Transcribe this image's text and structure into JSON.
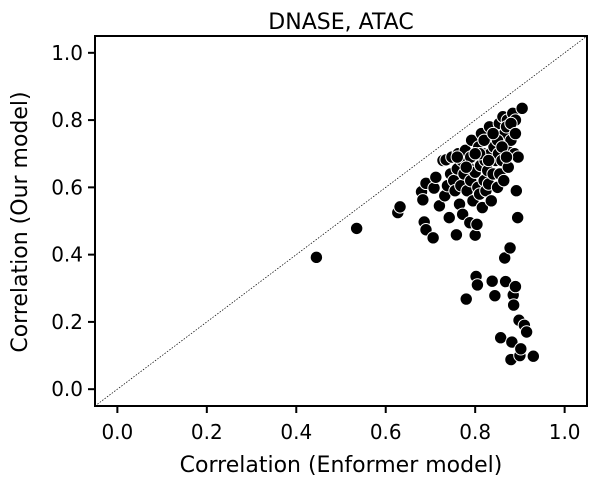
{
  "chart_data": {
    "type": "scatter",
    "title": "DNASE, ATAC",
    "xlabel": "Correlation (Enformer model)",
    "ylabel": "Correlation (Our model)",
    "xlim": [
      -0.05,
      1.05
    ],
    "ylim": [
      -0.05,
      1.05
    ],
    "xticks": [
      "0.0",
      "0.2",
      "0.4",
      "0.6",
      "0.8",
      "1.0"
    ],
    "yticks": [
      "0.0",
      "0.2",
      "0.4",
      "0.6",
      "0.8",
      "1.0"
    ],
    "grid": false,
    "reference_line": "y = x (dotted)",
    "marker_color": "#000000",
    "marker_edge_color": "#ffffff",
    "points": [
      [
        0.445,
        0.392
      ],
      [
        0.535,
        0.478
      ],
      [
        0.627,
        0.525
      ],
      [
        0.632,
        0.542
      ],
      [
        0.68,
        0.587
      ],
      [
        0.683,
        0.563
      ],
      [
        0.69,
        0.612
      ],
      [
        0.686,
        0.497
      ],
      [
        0.69,
        0.474
      ],
      [
        0.706,
        0.45
      ],
      [
        0.708,
        0.598
      ],
      [
        0.712,
        0.63
      ],
      [
        0.72,
        0.545
      ],
      [
        0.728,
        0.68
      ],
      [
        0.735,
        0.682
      ],
      [
        0.732,
        0.575
      ],
      [
        0.738,
        0.605
      ],
      [
        0.742,
        0.51
      ],
      [
        0.745,
        0.64
      ],
      [
        0.748,
        0.69
      ],
      [
        0.752,
        0.62
      ],
      [
        0.755,
        0.59
      ],
      [
        0.758,
        0.459
      ],
      [
        0.76,
        0.655
      ],
      [
        0.762,
        0.7
      ],
      [
        0.765,
        0.55
      ],
      [
        0.768,
        0.605
      ],
      [
        0.77,
        0.68
      ],
      [
        0.772,
        0.52
      ],
      [
        0.775,
        0.64
      ],
      [
        0.778,
        0.71
      ],
      [
        0.78,
        0.268
      ],
      [
        0.782,
        0.59
      ],
      [
        0.785,
        0.66
      ],
      [
        0.788,
        0.495
      ],
      [
        0.79,
        0.62
      ],
      [
        0.792,
        0.74
      ],
      [
        0.795,
        0.56
      ],
      [
        0.797,
        0.69
      ],
      [
        0.8,
        0.645
      ],
      [
        0.8,
        0.458
      ],
      [
        0.802,
        0.335
      ],
      [
        0.804,
        0.49
      ],
      [
        0.805,
        0.31
      ],
      [
        0.806,
        0.6
      ],
      [
        0.808,
        0.72
      ],
      [
        0.81,
        0.58
      ],
      [
        0.812,
        0.665
      ],
      [
        0.814,
        0.76
      ],
      [
        0.816,
        0.54
      ],
      [
        0.818,
        0.7
      ],
      [
        0.82,
        0.62
      ],
      [
        0.822,
        0.68
      ],
      [
        0.824,
        0.59
      ],
      [
        0.826,
        0.74
      ],
      [
        0.828,
        0.65
      ],
      [
        0.83,
        0.61
      ],
      [
        0.832,
        0.78
      ],
      [
        0.834,
        0.7
      ],
      [
        0.836,
        0.56
      ],
      [
        0.838,
        0.321
      ],
      [
        0.84,
        0.64
      ],
      [
        0.842,
        0.72
      ],
      [
        0.844,
        0.278
      ],
      [
        0.846,
        0.68
      ],
      [
        0.848,
        0.76
      ],
      [
        0.85,
        0.6
      ],
      [
        0.852,
        0.7
      ],
      [
        0.854,
        0.79
      ],
      [
        0.855,
        0.64
      ],
      [
        0.857,
        0.153
      ],
      [
        0.858,
        0.74
      ],
      [
        0.86,
        0.68
      ],
      [
        0.862,
        0.81
      ],
      [
        0.864,
        0.62
      ],
      [
        0.866,
        0.76
      ],
      [
        0.866,
        0.39
      ],
      [
        0.868,
        0.32
      ],
      [
        0.87,
        0.72
      ],
      [
        0.872,
        0.8
      ],
      [
        0.874,
        0.66
      ],
      [
        0.876,
        0.78
      ],
      [
        0.878,
        0.42
      ],
      [
        0.88,
        0.74
      ],
      [
        0.88,
        0.088
      ],
      [
        0.882,
        0.14
      ],
      [
        0.884,
        0.82
      ],
      [
        0.885,
        0.28
      ],
      [
        0.886,
        0.25
      ],
      [
        0.888,
        0.7
      ],
      [
        0.89,
        0.305
      ],
      [
        0.89,
        0.8
      ],
      [
        0.892,
        0.59
      ],
      [
        0.895,
        0.51
      ],
      [
        0.896,
        0.69
      ],
      [
        0.898,
        0.205
      ],
      [
        0.9,
        0.1
      ],
      [
        0.902,
        0.12
      ],
      [
        0.905,
        0.835
      ],
      [
        0.91,
        0.19
      ],
      [
        0.915,
        0.17
      ],
      [
        0.93,
        0.098
      ],
      [
        0.76,
        0.69
      ],
      [
        0.79,
        0.69
      ],
      [
        0.82,
        0.74
      ],
      [
        0.85,
        0.74
      ],
      [
        0.87,
        0.78
      ],
      [
        0.88,
        0.79
      ],
      [
        0.81,
        0.7
      ],
      [
        0.83,
        0.68
      ],
      [
        0.86,
        0.72
      ],
      [
        0.84,
        0.76
      ],
      [
        0.8,
        0.7
      ],
      [
        0.78,
        0.66
      ],
      [
        0.87,
        0.69
      ],
      [
        0.89,
        0.76
      ]
    ]
  }
}
